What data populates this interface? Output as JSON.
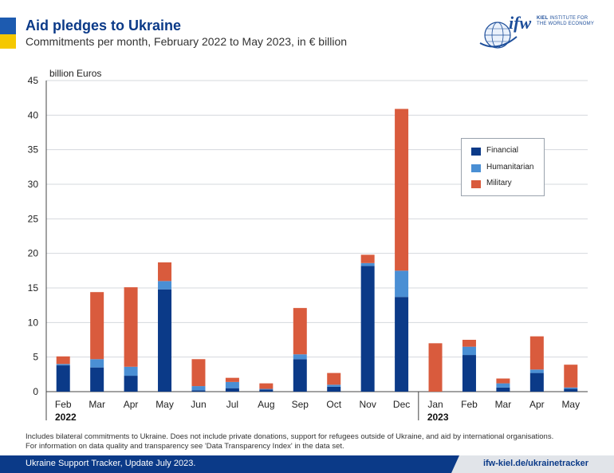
{
  "header": {
    "title": "Aid pledges to Ukraine",
    "subtitle": "Commitments per month, February 2022 to May 2023, in € billion"
  },
  "logo": {
    "mark": "ifw",
    "line1_bold": "KIEL",
    "line1_rest": " INSTITUTE FOR",
    "line2": "THE WORLD ECONOMY"
  },
  "colors": {
    "financial": "#0b3a88",
    "humanitarian": "#4a8fd4",
    "military": "#d95b3d",
    "brand_blue": "#1d5bb0",
    "brand_yellow": "#f5c800"
  },
  "chart_data": {
    "type": "bar",
    "stacked": true,
    "ylabel": "billion Euros",
    "ylim": [
      0,
      45
    ],
    "yticks": [
      0,
      5,
      10,
      15,
      20,
      25,
      30,
      35,
      40,
      45
    ],
    "grid": true,
    "legend_position": "right",
    "categories": [
      "Feb",
      "Mar",
      "Apr",
      "May",
      "Jun",
      "Jul",
      "Aug",
      "Sep",
      "Oct",
      "Nov",
      "Dec",
      "Jan",
      "Feb",
      "Mar",
      "Apr",
      "May"
    ],
    "year_labels": [
      {
        "label": "2022",
        "start_index": 0
      },
      {
        "label": "2023",
        "start_index": 11
      }
    ],
    "series": [
      {
        "name": "Financial",
        "color": "#0b3a88",
        "values": [
          3.8,
          3.5,
          2.3,
          14.8,
          0.2,
          0.5,
          0.3,
          4.7,
          0.7,
          18.2,
          13.7,
          0.0,
          5.3,
          0.6,
          2.7,
          0.4
        ]
      },
      {
        "name": "Humanitarian",
        "color": "#4a8fd4",
        "values": [
          0.2,
          1.2,
          1.3,
          1.2,
          0.6,
          0.9,
          0.1,
          0.7,
          0.3,
          0.4,
          3.8,
          0.0,
          1.2,
          0.6,
          0.5,
          0.2
        ]
      },
      {
        "name": "Military",
        "color": "#d95b3d",
        "values": [
          1.1,
          9.7,
          11.5,
          2.7,
          3.9,
          0.6,
          0.8,
          6.7,
          1.7,
          1.2,
          23.4,
          7.0,
          1.0,
          0.7,
          4.8,
          3.3
        ]
      }
    ]
  },
  "footnote": {
    "line1": "Includes bilateral commitments to Ukraine. Does not include private donations, support for refugees outside of Ukraine, and aid by international organisations.",
    "line2": "For information on data quality and transparency see 'Data Transparency Index' in the data set."
  },
  "footer": {
    "left": "Ukraine Support Tracker, Update July 2023.",
    "right": "ifw-kiel.de/ukrainetracker"
  }
}
